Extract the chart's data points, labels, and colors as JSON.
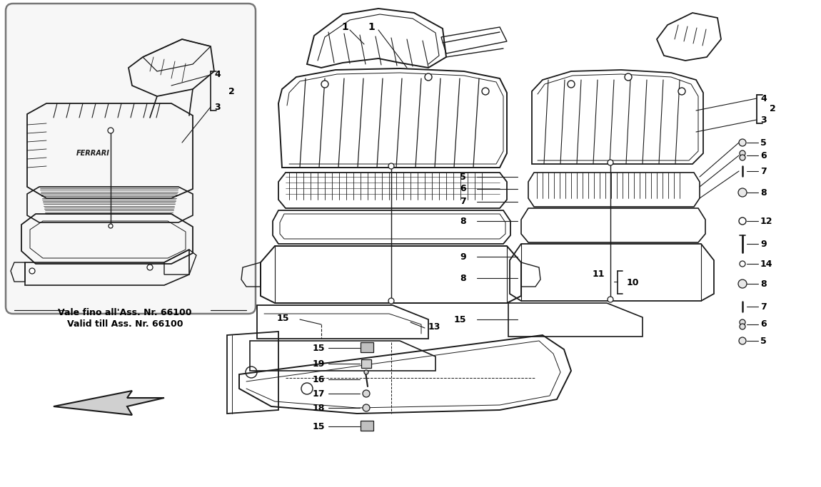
{
  "bg": "#ffffff",
  "lc": "#1a1a1a",
  "tc": "#000000",
  "figsize": [
    11.5,
    6.83
  ],
  "dpi": 100,
  "note1": "Vale fino all'Ass. Nr. 66100",
  "note2": "Valid till Ass. Nr. 66100"
}
